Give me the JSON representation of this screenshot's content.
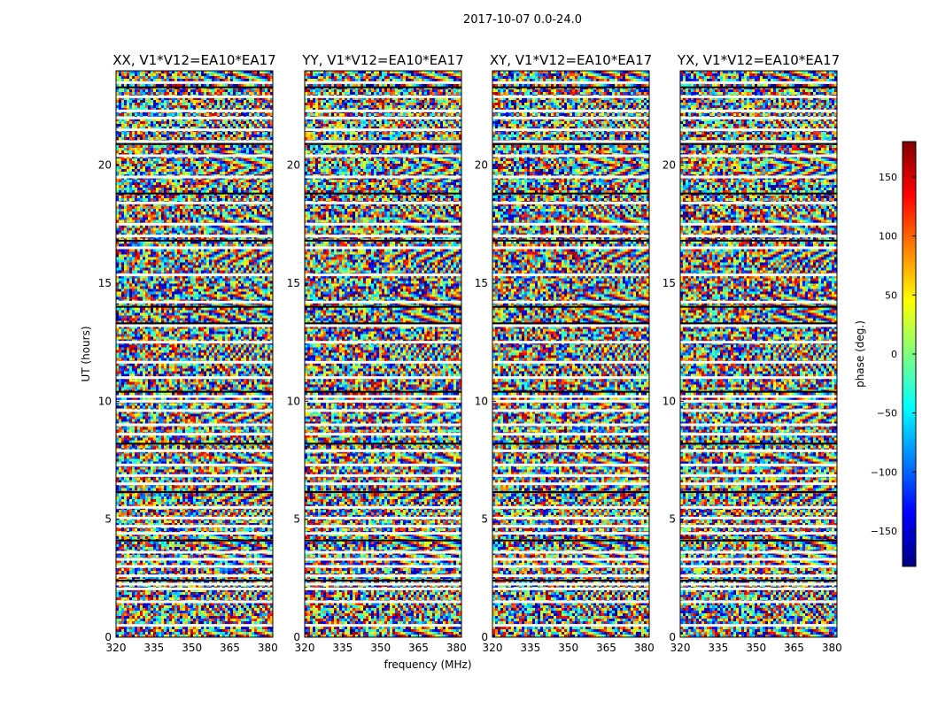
{
  "figure_title": "2017-10-07 0.0-24.0",
  "chart_data": {
    "type": "heatmap",
    "suptitle": "2017-10-07 0.0-24.0",
    "xlabel": "frequency (MHz)",
    "ylabel": "UT (hours)",
    "xlim": [
      320,
      382
    ],
    "ylim": [
      0,
      24
    ],
    "xticks": [
      320,
      335,
      350,
      365,
      380
    ],
    "yticks": [
      0,
      5,
      10,
      15,
      20
    ],
    "panels": [
      {
        "title": "XX, V1*V12=EA10*EA17",
        "polarization": "XX"
      },
      {
        "title": "YY, V1*V12=EA10*EA17",
        "polarization": "YY"
      },
      {
        "title": "XY, V1*V12=EA10*EA17",
        "polarization": "XY"
      },
      {
        "title": "YX, V1*V12=EA10*EA17",
        "polarization": "YX"
      }
    ],
    "flagged_white_hours": [
      0.5,
      1.5,
      2.05,
      2.25,
      2.6,
      3.0,
      3.3,
      3.6,
      4.4,
      4.7,
      5.05,
      5.5,
      6.5,
      6.85,
      7.3,
      7.9,
      8.6,
      9.0,
      9.6,
      10.0,
      10.2,
      11.0,
      11.65,
      12.5,
      13.2,
      14.2,
      15.35,
      16.5,
      17.0,
      17.5,
      18.4,
      19.5,
      20.4,
      21.0,
      21.5,
      22.0,
      22.3,
      22.9,
      23.5
    ],
    "flagged_black_hours": [
      2.4,
      4.1,
      6.15,
      8.2,
      10.4,
      13.3,
      14.0,
      16.8,
      18.8,
      20.9,
      23.3
    ],
    "colorbar": {
      "label": "phase (deg.)",
      "range": [
        -180,
        180
      ],
      "ticks": [
        -150,
        -100,
        -50,
        0,
        50,
        100,
        150
      ],
      "tick_labels": [
        "−150",
        "−100",
        "−50",
        "0",
        "50",
        "100",
        "150"
      ],
      "colormap": "jet",
      "colors": [
        "#00007f",
        "#0000ff",
        "#007fff",
        "#00ffff",
        "#7fff7f",
        "#ffff00",
        "#ff7f00",
        "#ff0000",
        "#7f0000"
      ]
    }
  }
}
